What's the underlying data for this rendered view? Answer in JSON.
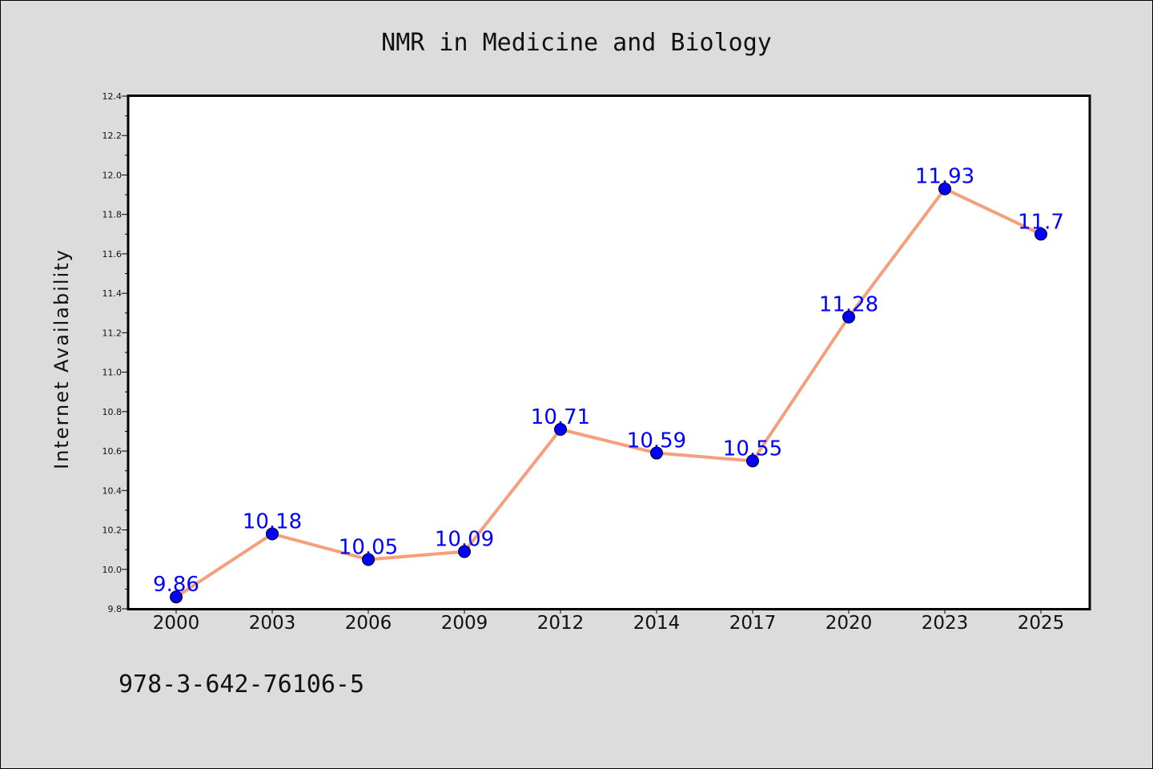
{
  "chart_data": {
    "type": "line",
    "title": "NMR in Medicine and Biology",
    "xlabel": "",
    "ylabel": "Internet Availability",
    "categories": [
      "2000",
      "2003",
      "2006",
      "2009",
      "2012",
      "2014",
      "2017",
      "2020",
      "2023",
      "2025"
    ],
    "series": [
      {
        "values": [
          9.86,
          10.18,
          10.05,
          10.09,
          10.71,
          10.59,
          10.55,
          11.28,
          11.93,
          11.7
        ],
        "labels": [
          "9.86",
          "10.18",
          "10.05",
          "10.09",
          "10.71",
          "10.59",
          "10.55",
          "11.28",
          "11.93",
          "11.7"
        ]
      }
    ],
    "ylim": [
      9.8,
      12.4
    ],
    "yticks": [
      "9.8",
      "10.0",
      "10.2",
      "10.4",
      "10.6",
      "10.8",
      "11.0",
      "11.2",
      "11.4",
      "11.6",
      "11.8",
      "12.0",
      "12.2",
      "12.4"
    ],
    "grid": false,
    "legend": "none",
    "colors": {
      "line": "#f4a07c",
      "marker": "#0000ff",
      "data_label": "#0000ff",
      "background": "#dcdcdc",
      "plot_background": "#ffffff"
    }
  },
  "footer": {
    "isbn": "978-3-642-76106-5"
  }
}
